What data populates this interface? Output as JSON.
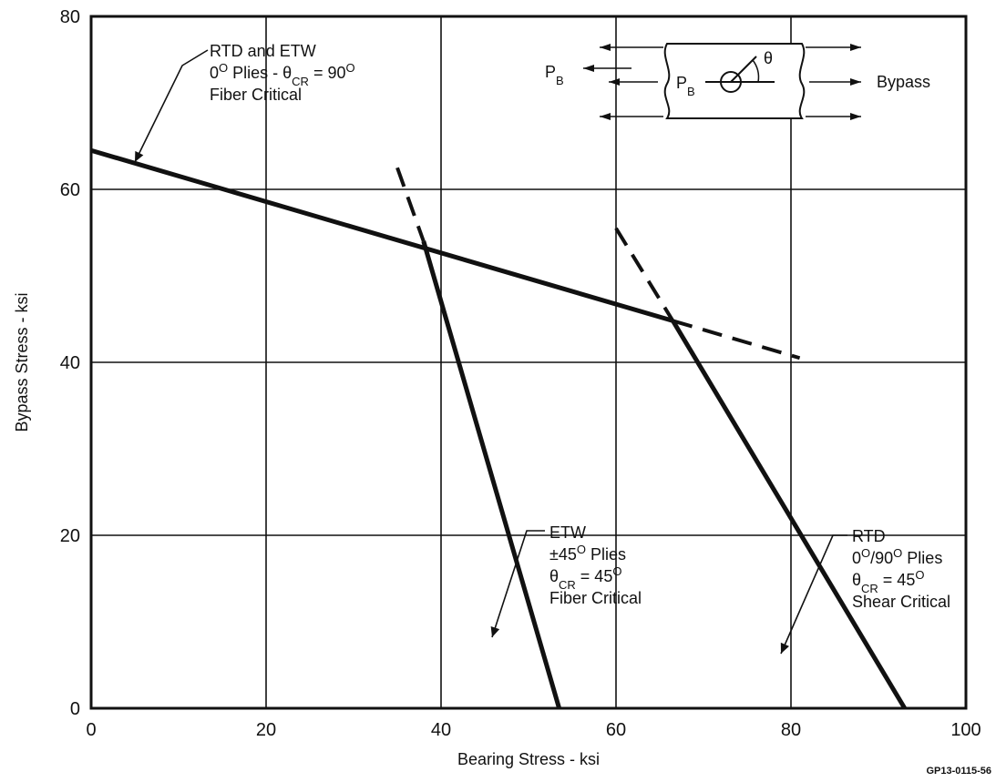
{
  "chart_data": {
    "type": "line",
    "xlabel": "Bearing Stress - ksi",
    "ylabel": "Bypass Stress - ksi",
    "xlim": [
      0,
      100
    ],
    "ylim": [
      0,
      80
    ],
    "xticks": [
      "0",
      "20",
      "40",
      "60",
      "80",
      "100"
    ],
    "yticks": [
      "0",
      "20",
      "40",
      "60",
      "80"
    ],
    "grid": true,
    "figure_id": "GP13-0115-56",
    "series": [
      {
        "style": "solid",
        "points": [
          [
            0,
            64.5
          ],
          [
            66.5,
            44.8
          ]
        ],
        "label_lines": [
          [
            "RTD and ETW"
          ],
          [
            "0",
            "O",
            " Plies - ",
            "θ",
            "CR",
            " = 90",
            "O"
          ],
          [
            "Fiber Critical"
          ]
        ]
      },
      {
        "style": "dashed",
        "points": [
          [
            66.5,
            44.8
          ],
          [
            81,
            40.5
          ]
        ]
      },
      {
        "style": "dashed",
        "points": [
          [
            35,
            62.5
          ],
          [
            38,
            54
          ]
        ]
      },
      {
        "style": "solid",
        "points": [
          [
            38,
            54
          ],
          [
            53.5,
            0
          ]
        ],
        "label_lines": [
          [
            "ETW"
          ],
          [
            "±45",
            "O",
            " Plies"
          ],
          [
            "θ",
            "CR",
            " = 45",
            "O"
          ],
          [
            "Fiber Critical"
          ]
        ]
      },
      {
        "style": "dashed",
        "points": [
          [
            60,
            55.5
          ],
          [
            66.5,
            44.8
          ]
        ]
      },
      {
        "style": "solid",
        "points": [
          [
            66.5,
            44.8
          ],
          [
            93,
            0
          ]
        ],
        "label_lines": [
          [
            "RTD"
          ],
          [
            "0",
            "O",
            "/90",
            "O",
            " Plies"
          ],
          [
            "θ",
            "CR",
            " = 45",
            "O"
          ],
          [
            "Shear Critical"
          ]
        ]
      }
    ],
    "inset": {
      "left_label": "P",
      "left_sub": "B",
      "inner_label": "P",
      "inner_sub": "B",
      "angle_label": "θ",
      "right_label": "Bypass"
    }
  }
}
